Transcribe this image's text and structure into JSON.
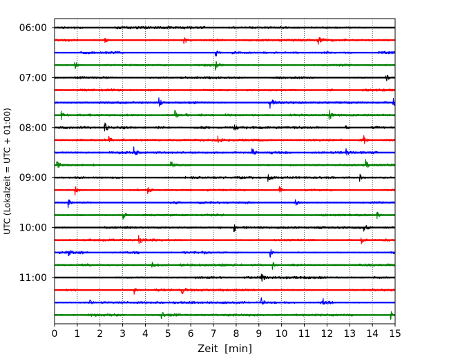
{
  "chart_data": {
    "type": "line",
    "title": "",
    "xlabel": "Zeit  [min]",
    "ylabel": "UTC (Lokalzeit = UTC + 01:00)",
    "xlim": [
      0,
      15
    ],
    "x_ticks": [
      "0",
      "1",
      "2",
      "3",
      "4",
      "5",
      "6",
      "7",
      "8",
      "9",
      "10",
      "11",
      "12",
      "13",
      "14",
      "15"
    ],
    "y_ticks": [
      "06:00",
      "07:00",
      "08:00",
      "09:00",
      "10:00",
      "11:00"
    ],
    "start_time": "06:00",
    "trace_interval_minutes": 15,
    "grid": "vertical dotted at each minute",
    "legend": "none",
    "colors": [
      "#000000",
      "#ff0000",
      "#0000ff",
      "#008000"
    ],
    "traces": [
      {
        "time": "06:00",
        "color": "#000000",
        "events": []
      },
      {
        "time": "06:15",
        "color": "#ff0000",
        "events": [
          2.2,
          5.7,
          11.6
        ]
      },
      {
        "time": "06:30",
        "color": "#0000ff",
        "events": [
          7.1
        ]
      },
      {
        "time": "06:45",
        "color": "#008000",
        "events": [
          0.9,
          7.1
        ]
      },
      {
        "time": "07:00",
        "color": "#000000",
        "events": [
          14.6
        ]
      },
      {
        "time": "07:15",
        "color": "#ff0000",
        "events": []
      },
      {
        "time": "07:30",
        "color": "#0000ff",
        "events": [
          4.6,
          9.5,
          14.9
        ]
      },
      {
        "time": "07:45",
        "color": "#008000",
        "events": [
          0.3,
          5.3,
          12.1
        ]
      },
      {
        "time": "08:00",
        "color": "#000000",
        "events": [
          2.2,
          7.9,
          12.8
        ]
      },
      {
        "time": "08:15",
        "color": "#ff0000",
        "events": [
          2.4,
          7.2,
          13.6
        ]
      },
      {
        "time": "08:30",
        "color": "#0000ff",
        "events": [
          3.5,
          8.7,
          12.8
        ]
      },
      {
        "time": "08:45",
        "color": "#008000",
        "events": [
          0.1,
          5.1,
          13.7
        ]
      },
      {
        "time": "09:00",
        "color": "#000000",
        "events": [
          9.4,
          13.4
        ]
      },
      {
        "time": "09:15",
        "color": "#ff0000",
        "events": [
          0.9,
          4.1,
          9.9
        ]
      },
      {
        "time": "09:30",
        "color": "#0000ff",
        "events": [
          0.6,
          10.6
        ]
      },
      {
        "time": "09:45",
        "color": "#008000",
        "events": [
          3.0,
          14.2
        ]
      },
      {
        "time": "10:00",
        "color": "#000000",
        "events": [
          7.9,
          13.6
        ]
      },
      {
        "time": "10:15",
        "color": "#ff0000",
        "events": [
          3.7,
          13.5
        ]
      },
      {
        "time": "10:30",
        "color": "#0000ff",
        "events": [
          0.6,
          9.5
        ]
      },
      {
        "time": "10:45",
        "color": "#008000",
        "events": [
          4.3,
          9.6
        ]
      },
      {
        "time": "11:00",
        "color": "#000000",
        "events": [
          9.1
        ]
      },
      {
        "time": "11:15",
        "color": "#ff0000",
        "events": [
          3.5,
          5.6
        ]
      },
      {
        "time": "11:30",
        "color": "#0000ff",
        "events": [
          1.5,
          9.1,
          11.8
        ]
      },
      {
        "time": "11:45",
        "color": "#008000",
        "events": [
          4.7,
          14.8
        ]
      }
    ]
  }
}
